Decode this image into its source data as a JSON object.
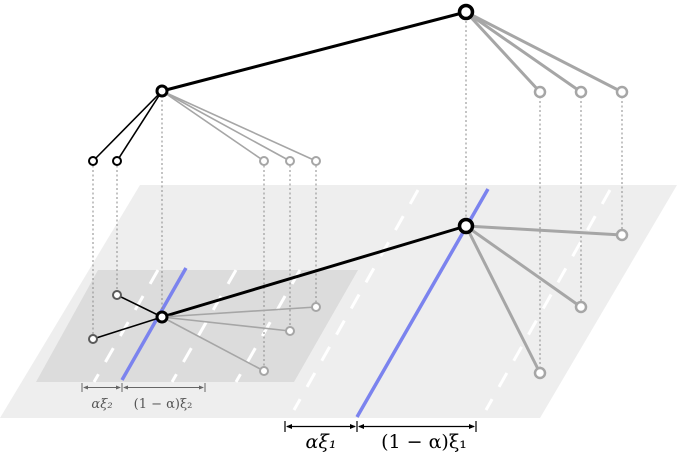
{
  "diagram": {
    "small_measure": {
      "left_label": "αξ₂",
      "right_label": "(1 − α)ξ₂"
    },
    "large_measure": {
      "left_label": "αξ₁",
      "right_label": "(1 − α)ξ₁"
    },
    "colors": {
      "plane_outer": "#eeeeee",
      "plane_inner": "#dcdcdc",
      "tree_black": "#000000",
      "tree_gray": "#a6a6a6",
      "tree_dark_gray": "#5a5a5a",
      "split_line": "#7b83ee",
      "dashed_lane": "#ffffff",
      "projection": "#8a8a8a",
      "measure_small": "#666666",
      "measure_large": "#000000"
    }
  }
}
